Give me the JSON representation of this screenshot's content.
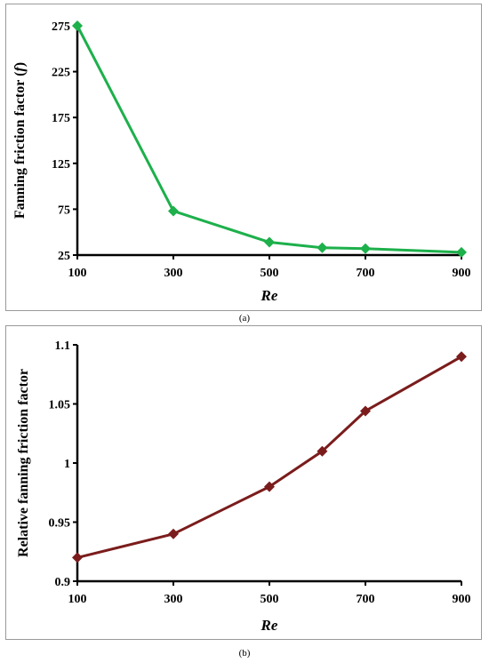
{
  "captions": {
    "a": "(a)",
    "b": "(b)"
  },
  "chart_data": [
    {
      "type": "line",
      "x": [
        100,
        300,
        500,
        610,
        700,
        900
      ],
      "series": [
        {
          "values": [
            275,
            73,
            39,
            33,
            32,
            28
          ],
          "color": "#1db04b",
          "marker": "diamond"
        }
      ],
      "xlabel": "Re",
      "ylabel": "Fanning friction factor (",
      "ylabel_symbol": "f",
      "ylabel_close": ")",
      "xticks": [
        100,
        300,
        500,
        700,
        900
      ],
      "xtick_labels": [
        "100",
        "300",
        "500",
        "700",
        "900"
      ],
      "yticks": [
        25,
        75,
        125,
        175,
        225,
        275
      ],
      "ytick_labels": [
        "25",
        "75",
        "125",
        "175",
        "225",
        "275"
      ],
      "xlim": [
        100,
        900
      ],
      "ylim": [
        25,
        275
      ],
      "grid": false
    },
    {
      "type": "line",
      "x": [
        100,
        300,
        500,
        610,
        700,
        900
      ],
      "series": [
        {
          "values": [
            0.92,
            0.94,
            0.98,
            1.01,
            1.044,
            1.09
          ],
          "color": "#7b1c1c",
          "marker": "diamond"
        }
      ],
      "xlabel": "Re",
      "ylabel": "Relative fanning friction factor",
      "xticks": [
        100,
        300,
        500,
        700,
        900
      ],
      "xtick_labels": [
        "100",
        "300",
        "500",
        "700",
        "900"
      ],
      "yticks": [
        0.9,
        0.95,
        1.0,
        1.05,
        1.1
      ],
      "ytick_labels": [
        "0.9",
        "0.95",
        "1",
        "1.05",
        "1.1"
      ],
      "xlim": [
        100,
        900
      ],
      "ylim": [
        0.9,
        1.1
      ],
      "grid": false
    }
  ]
}
